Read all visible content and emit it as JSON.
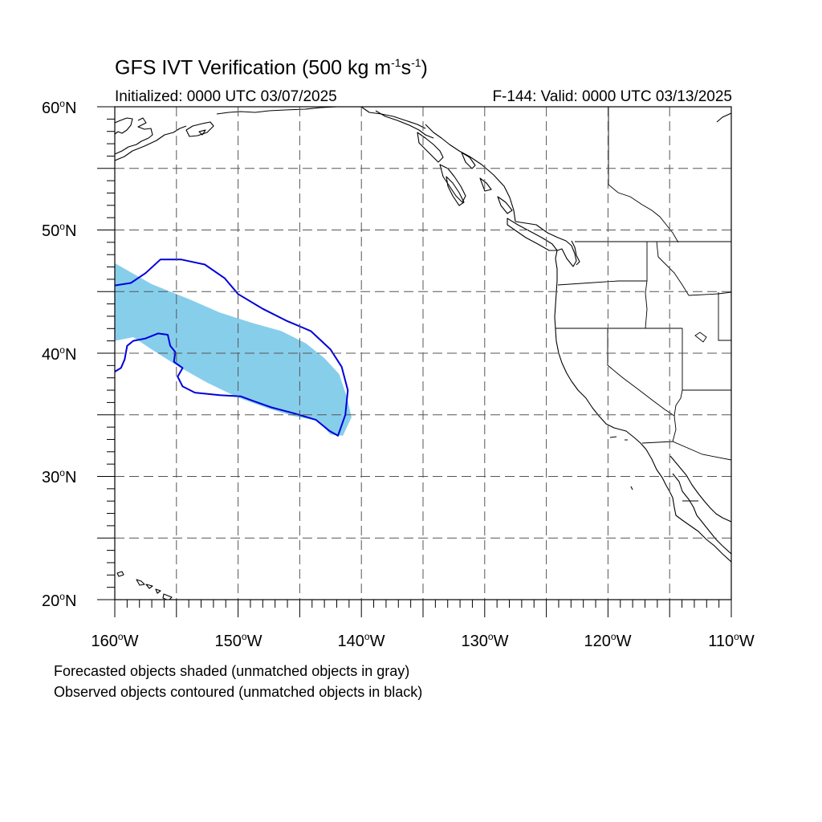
{
  "header": {
    "title": "GFS IVT Verification (500 kg m",
    "title_exp1": "-1",
    "title_mid": "s",
    "title_exp2": "-1",
    "title_end": ")",
    "initialized": "Initialized: 0000 UTC 03/07/2025",
    "valid": "F-144: Valid: 0000 UTC 03/13/2025"
  },
  "axes": {
    "lat_labels": [
      "60",
      "50",
      "40",
      "30",
      "20"
    ],
    "lat_suffix": "N",
    "lon_labels": [
      "160",
      "150",
      "140",
      "130",
      "120",
      "110"
    ],
    "lon_suffix": "W",
    "deg": "o"
  },
  "legend": {
    "line1": "Forecasted objects shaded (unmatched objects in gray)",
    "line2": "Observed objects contoured (unmatched objects in black)"
  },
  "map": {
    "projection": "equirectangular",
    "lon_range": [
      -160,
      -110
    ],
    "lat_range": [
      20,
      60
    ],
    "grid_interval_deg": 5,
    "grid": "dashed",
    "colors": {
      "forecast_fill": "#87ceeb",
      "observed_contour": "#0000dd",
      "coastline": "#000000"
    }
  },
  "chart_data": {
    "type": "map",
    "objects": [
      {
        "kind": "forecast-shaded",
        "matched": true,
        "color": "#87ceeb",
        "polygon": [
          [
            -160.0,
            47.3
          ],
          [
            -157.0,
            45.6
          ],
          [
            -154.0,
            44.4
          ],
          [
            -151.5,
            43.3
          ],
          [
            -149.0,
            42.5
          ],
          [
            -146.5,
            41.8
          ],
          [
            -144.5,
            40.8
          ],
          [
            -143.0,
            39.6
          ],
          [
            -141.8,
            38.3
          ],
          [
            -141.2,
            36.5
          ],
          [
            -140.8,
            34.8
          ],
          [
            -141.5,
            33.3
          ],
          [
            -142.5,
            33.4
          ],
          [
            -143.5,
            34.5
          ],
          [
            -145.5,
            34.9
          ],
          [
            -147.5,
            35.5
          ],
          [
            -150.0,
            36.4
          ],
          [
            -152.5,
            37.6
          ],
          [
            -154.8,
            38.9
          ],
          [
            -157.0,
            40.3
          ],
          [
            -158.5,
            41.3
          ],
          [
            -160.0,
            41.0
          ]
        ]
      },
      {
        "kind": "observed-contour",
        "matched": true,
        "color": "#0000dd",
        "polygon": [
          [
            -160.0,
            45.5
          ],
          [
            -158.7,
            45.7
          ],
          [
            -157.5,
            46.5
          ],
          [
            -156.3,
            47.6
          ],
          [
            -154.6,
            47.6
          ],
          [
            -152.7,
            47.2
          ],
          [
            -151.1,
            46.1
          ],
          [
            -150.0,
            44.8
          ],
          [
            -148.0,
            43.6
          ],
          [
            -146.0,
            42.6
          ],
          [
            -144.1,
            41.8
          ],
          [
            -142.5,
            40.3
          ],
          [
            -141.6,
            38.9
          ],
          [
            -141.1,
            37.0
          ],
          [
            -141.3,
            35.0
          ],
          [
            -141.9,
            33.3
          ],
          [
            -142.6,
            33.7
          ],
          [
            -143.7,
            34.6
          ],
          [
            -145.4,
            35.1
          ],
          [
            -147.3,
            35.6
          ],
          [
            -148.7,
            36.1
          ],
          [
            -149.8,
            36.5
          ],
          [
            -151.5,
            36.6
          ],
          [
            -153.5,
            36.8
          ],
          [
            -154.5,
            37.3
          ],
          [
            -154.9,
            38.1
          ],
          [
            -154.5,
            38.8
          ],
          [
            -155.2,
            39.3
          ],
          [
            -155.1,
            40.1
          ],
          [
            -155.5,
            40.6
          ],
          [
            -155.7,
            41.5
          ],
          [
            -156.5,
            41.6
          ],
          [
            -157.5,
            41.2
          ],
          [
            -158.5,
            41.0
          ],
          [
            -159.0,
            40.6
          ],
          [
            -159.2,
            39.5
          ],
          [
            -159.5,
            38.8
          ],
          [
            -160.0,
            38.5
          ]
        ]
      }
    ]
  }
}
